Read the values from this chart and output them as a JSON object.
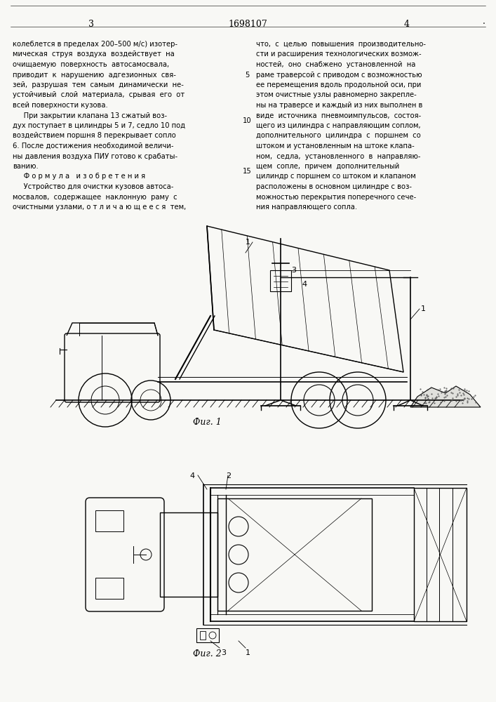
{
  "bg_color": "#f8f8f5",
  "page_width": 7.07,
  "page_height": 10.0,
  "left_page_num": "3",
  "center_title": "1698107",
  "right_page_num": "4",
  "text_left": [
    "колеблется в пределах 200–500 м/с) изотер-",
    "мическая  струя  воздуха  воздействует  на",
    "очищаемую  поверхность  автосамосвала,",
    "приводит  к  нарушению  адгезионных  свя-",
    "зей,  разрушая  тем  самым  динамически  не-",
    "устойчивый  слой  материала,  срывая  его  от",
    "всей поверхности кузова.",
    "     При закрытии клапана 13 сжатый воз-",
    "дух поступает в цилиндры 5 и 7, седло 10 под",
    "воздействием поршня 8 перекрывает сопло",
    "6. После достижения необходимой величи-",
    "ны давления воздуха ПИУ готово к срабаты-",
    "ванию.",
    "     Ф о р м у л а   и з о б р е т е н и я",
    "     Устройство для очистки кузовов автоса-",
    "мосвалов,  содержащее  наклонную  раму  с",
    "очистными узлами, о т л и ч а ю щ е е с я  тем,"
  ],
  "text_right": [
    "что,  с  целью  повышения  производительно-",
    "сти и расширения технологических возмож-",
    "ностей,  оно  снабжено  установленной  на",
    "раме траверсой с приводом с возможностью",
    "ее перемещения вдоль продольной оси, при",
    "этом очистные узлы равномерно закрепле-",
    "ны на траверсе и каждый из них выполнен в",
    "виде  источника  пневмоимпульсов,  состоя-",
    "щего из цилиндра с направляющим соплом,",
    "дополнительного  цилиндра  с  поршнем  со",
    "штоком и установленным на штоке клапа-",
    "ном,  седла,  установленного  в  направляю-",
    "щем  сопле,  причем  дополнительный",
    "цилиндр с поршнем со штоком и клапаном",
    "расположены в основном цилиндре с воз-",
    "можностью перекрытия поперечного сече-",
    "ния направляющего сопла."
  ],
  "line_number_5": "5",
  "line_number_10": "10",
  "line_number_15": "15",
  "fig1_label": "Фиг. 1",
  "fig2_label": "Фиг. 2",
  "lbl1": "1",
  "lbl2": "2",
  "lbl3": "3",
  "lbl4": "4"
}
